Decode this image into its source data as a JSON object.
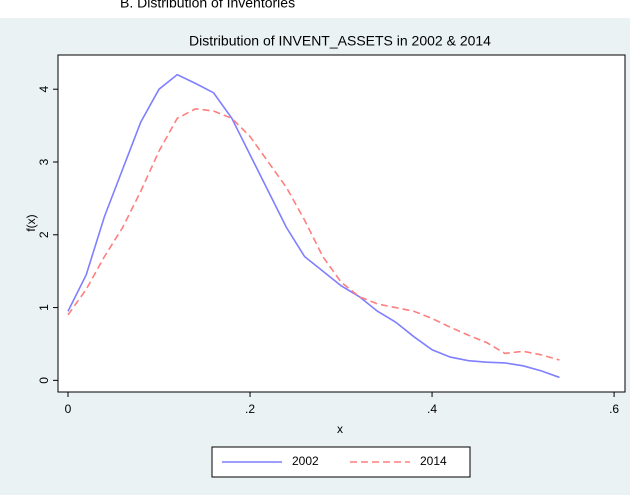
{
  "heading": "B. Distribution of Inventories",
  "chart_data": {
    "type": "line",
    "title": "Distribution of INVENT_ASSETS in 2002 & 2014",
    "x_label": "x",
    "y_label": "f(x)",
    "x": [
      0,
      0.02,
      0.04,
      0.06,
      0.08,
      0.1,
      0.12,
      0.14,
      0.16,
      0.18,
      0.2,
      0.22,
      0.24,
      0.26,
      0.28,
      0.3,
      0.32,
      0.34,
      0.36,
      0.38,
      0.4,
      0.42,
      0.44,
      0.46,
      0.48,
      0.5,
      0.52,
      0.54
    ],
    "series": [
      {
        "name": "2002",
        "color": "#7f7fff",
        "dashed": false,
        "values": [
          0.95,
          1.45,
          2.25,
          2.9,
          3.55,
          4.0,
          4.2,
          4.08,
          3.95,
          3.6,
          3.1,
          2.6,
          2.1,
          1.7,
          1.5,
          1.3,
          1.15,
          0.95,
          0.8,
          0.6,
          0.42,
          0.32,
          0.27,
          0.25,
          0.24,
          0.2,
          0.13,
          0.04
        ]
      },
      {
        "name": "2014",
        "color": "#ff7f7f",
        "dashed": true,
        "values": [
          0.9,
          1.25,
          1.7,
          2.1,
          2.6,
          3.15,
          3.6,
          3.73,
          3.7,
          3.6,
          3.35,
          3.0,
          2.65,
          2.2,
          1.7,
          1.35,
          1.15,
          1.05,
          1.0,
          0.95,
          0.85,
          0.73,
          0.62,
          0.52,
          0.37,
          0.4,
          0.35,
          0.28
        ]
      }
    ],
    "xlim": [
      -0.011,
      0.612
    ],
    "ylim": [
      -0.16,
      4.47
    ],
    "xticks": [
      0,
      {
        "value": 0.2,
        "label": ".2"
      },
      {
        "value": 0.4,
        "label": ".4"
      },
      {
        "value": 0.6,
        "label": ".6"
      }
    ],
    "yticks": [
      0,
      1,
      2,
      3,
      4
    ],
    "grid": false,
    "legend": "bottom"
  }
}
